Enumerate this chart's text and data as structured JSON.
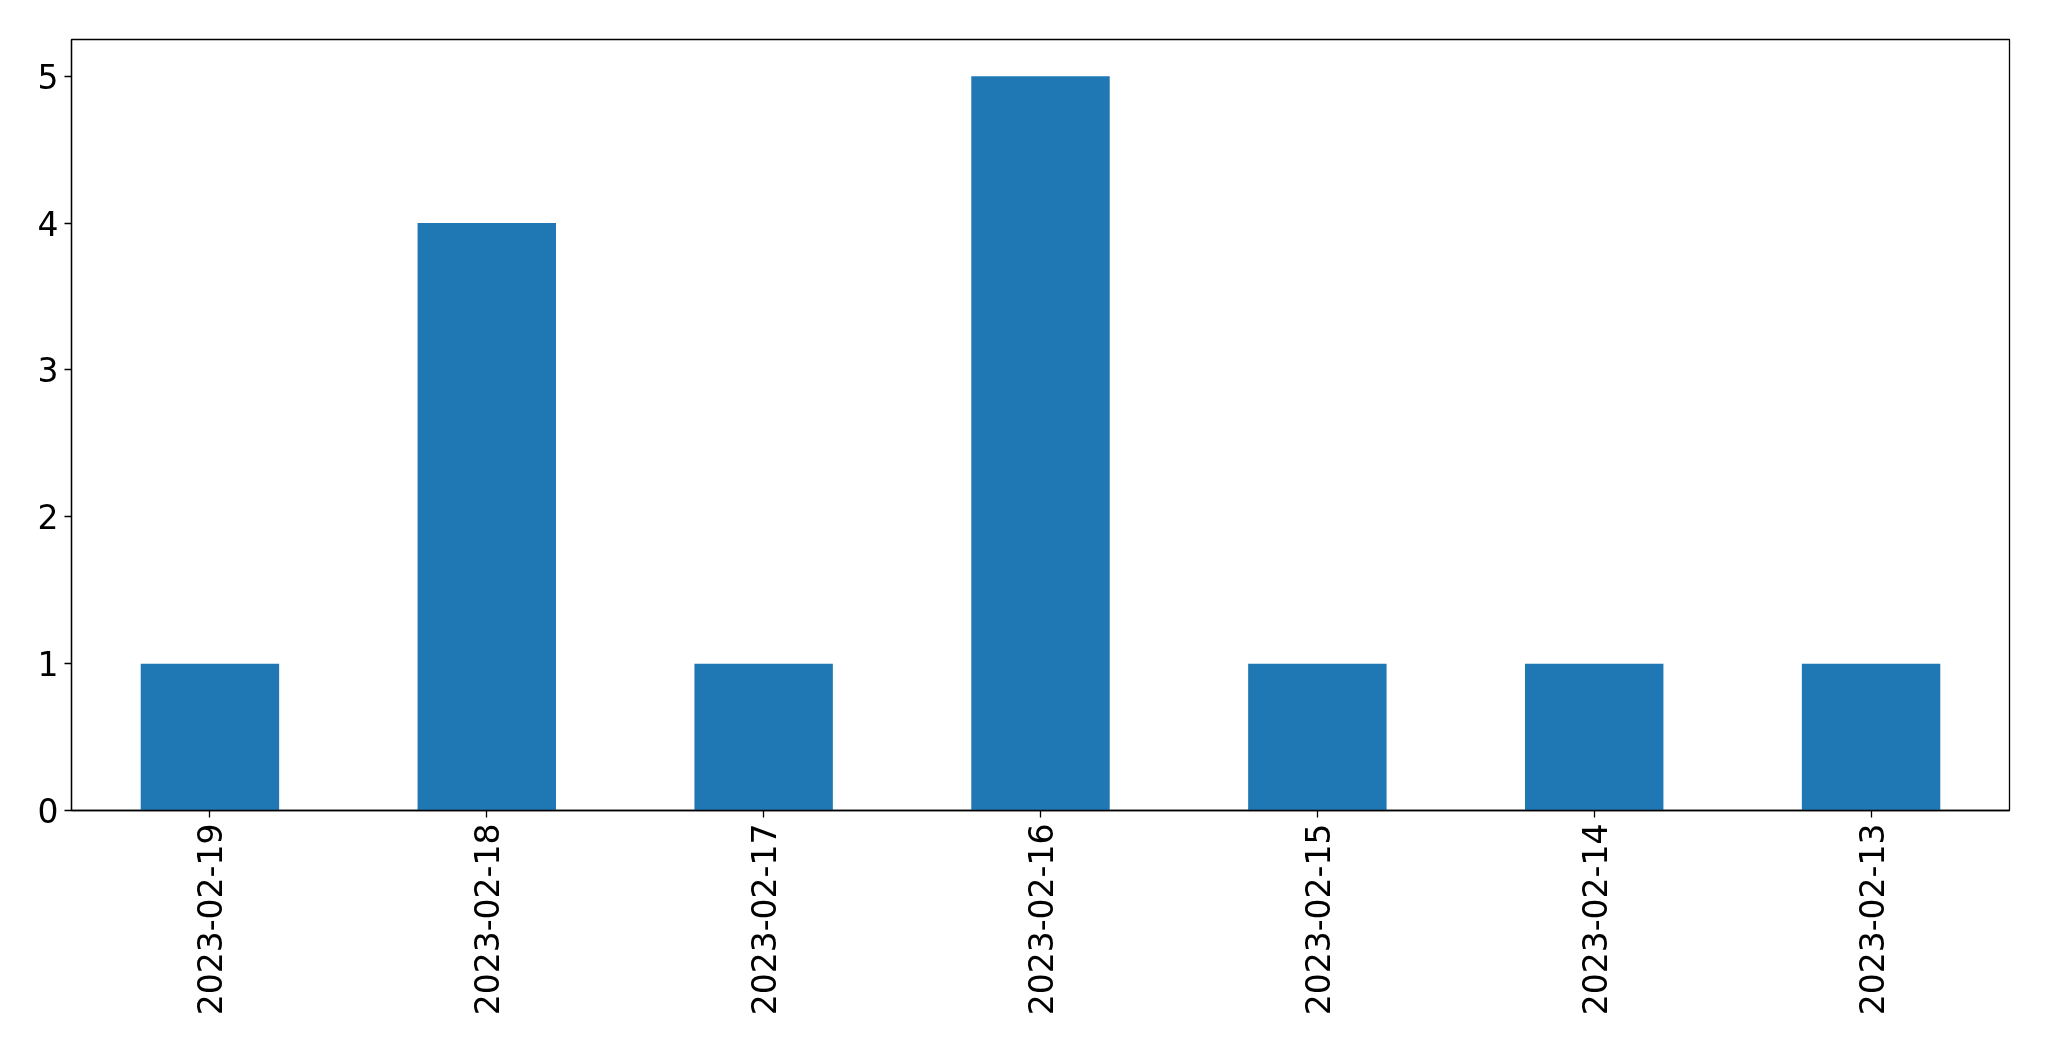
{
  "chart_data": {
    "type": "bar",
    "categories": [
      "2023-02-19",
      "2023-02-18",
      "2023-02-17",
      "2023-02-16",
      "2023-02-15",
      "2023-02-14",
      "2023-02-13"
    ],
    "values": [
      1,
      4,
      1,
      5,
      1,
      1,
      1
    ],
    "color": "#1f77b4",
    "ylim": [
      0,
      5.25
    ],
    "yticks": [
      0,
      1,
      2,
      3,
      4,
      5
    ]
  }
}
